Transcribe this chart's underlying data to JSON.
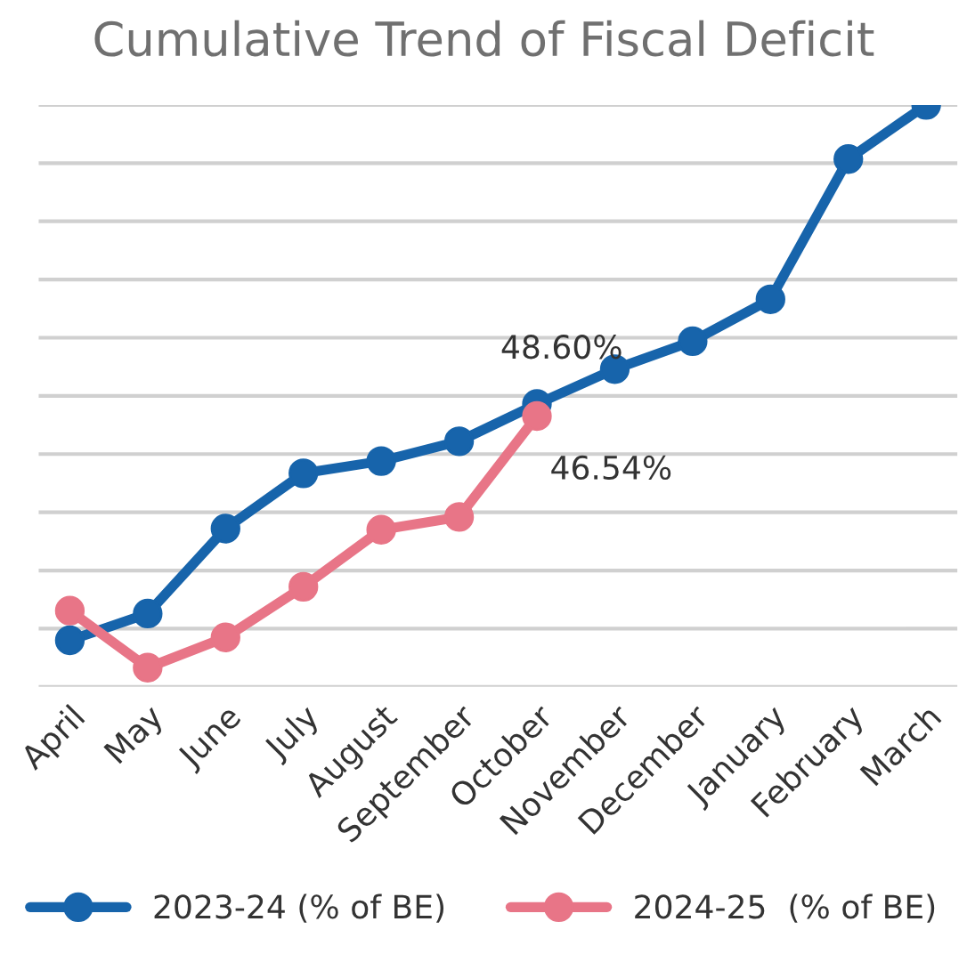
{
  "chart_data": {
    "type": "line",
    "title": "Cumulative Trend of Fiscal Deficit",
    "categories": [
      "April",
      "May",
      "June",
      "July",
      "August",
      "September",
      "October",
      "November",
      "December",
      "January",
      "February",
      "March"
    ],
    "series": [
      {
        "name": "2023-24 (% of BE)",
        "color": "#1764ab",
        "values": [
          8.0,
          12.6,
          27.2,
          36.7,
          38.8,
          42.2,
          48.6,
          54.6,
          59.4,
          66.6,
          90.7,
          100.0
        ],
        "value_labels": [
          null,
          null,
          null,
          null,
          null,
          null,
          "48.60%",
          null,
          null,
          null,
          null,
          null
        ]
      },
      {
        "name": "2024-25  (% of BE)",
        "color": "#e87587",
        "values": [
          13.1,
          3.3,
          8.5,
          17.2,
          27.0,
          29.2,
          46.54,
          null,
          null,
          null,
          null,
          null
        ],
        "value_labels": [
          null,
          null,
          null,
          null,
          null,
          null,
          "46.54%",
          null,
          null,
          null,
          null,
          null
        ]
      }
    ],
    "ylim": [
      0,
      100
    ],
    "yticks": [
      {
        "value": 0,
        "label": null
      },
      {
        "value": 10,
        "label": null
      },
      {
        "value": 20,
        "label": null
      },
      {
        "value": 30,
        "label": null
      },
      {
        "value": 40,
        "label": null
      },
      {
        "value": 50,
        "label": null
      },
      {
        "value": 60,
        "label": null
      },
      {
        "value": 70,
        "label": null
      },
      {
        "value": 80,
        "label": null
      },
      {
        "value": 90,
        "label": null
      },
      {
        "value": 100,
        "label": null
      }
    ],
    "tick_labels": "x",
    "marker": "circle",
    "line_style": "solid",
    "grid": "y",
    "legend": "bottom"
  }
}
